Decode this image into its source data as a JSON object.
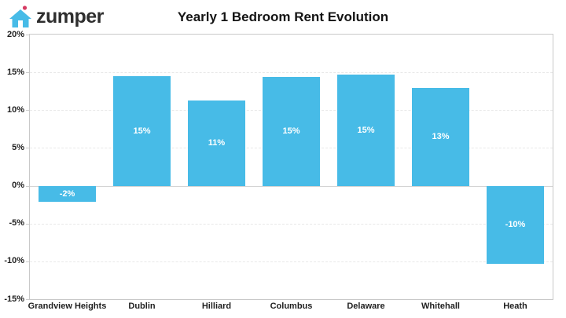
{
  "header": {
    "logo_text": "zumper"
  },
  "colors": {
    "bar": "#47BBE7",
    "bar_label": "#FFFFFF",
    "logo_house": "#47BBE7",
    "logo_dot": "#D63B63",
    "logo_text": "#2E2E2E",
    "axis_text": "#1F1F1F",
    "plot_border": "#C9C9C9",
    "gridline": "#E8E8E8",
    "zero_line": "#D4D4D4"
  },
  "chart_data": {
    "type": "bar",
    "title": "Yearly 1 Bedroom Rent Evolution",
    "categories": [
      "Grandview Heights",
      "Dublin",
      "Hilliard",
      "Columbus",
      "Delaware",
      "Whitehall",
      "Heath"
    ],
    "values": [
      -2,
      15,
      11,
      15,
      15,
      13,
      -10
    ],
    "bar_labels": [
      "-2%",
      "15%",
      "11%",
      "15%",
      "15%",
      "13%",
      "-10%"
    ],
    "rendered_heights_pct": [
      -2.1,
      14.5,
      11.3,
      14.4,
      14.7,
      12.9,
      -10.3
    ],
    "ylim": [
      -15,
      20
    ],
    "yticks": [
      {
        "value": 20,
        "label": "20%"
      },
      {
        "value": 15,
        "label": "15%"
      },
      {
        "value": 10,
        "label": "10%"
      },
      {
        "value": 5,
        "label": "5%"
      },
      {
        "value": 0,
        "label": "0%"
      },
      {
        "value": -5,
        "label": "-5%"
      },
      {
        "value": -10,
        "label": "-10%"
      },
      {
        "value": -15,
        "label": "-15%"
      }
    ],
    "grid": true,
    "legend": false,
    "xlabel": "",
    "ylabel": ""
  }
}
